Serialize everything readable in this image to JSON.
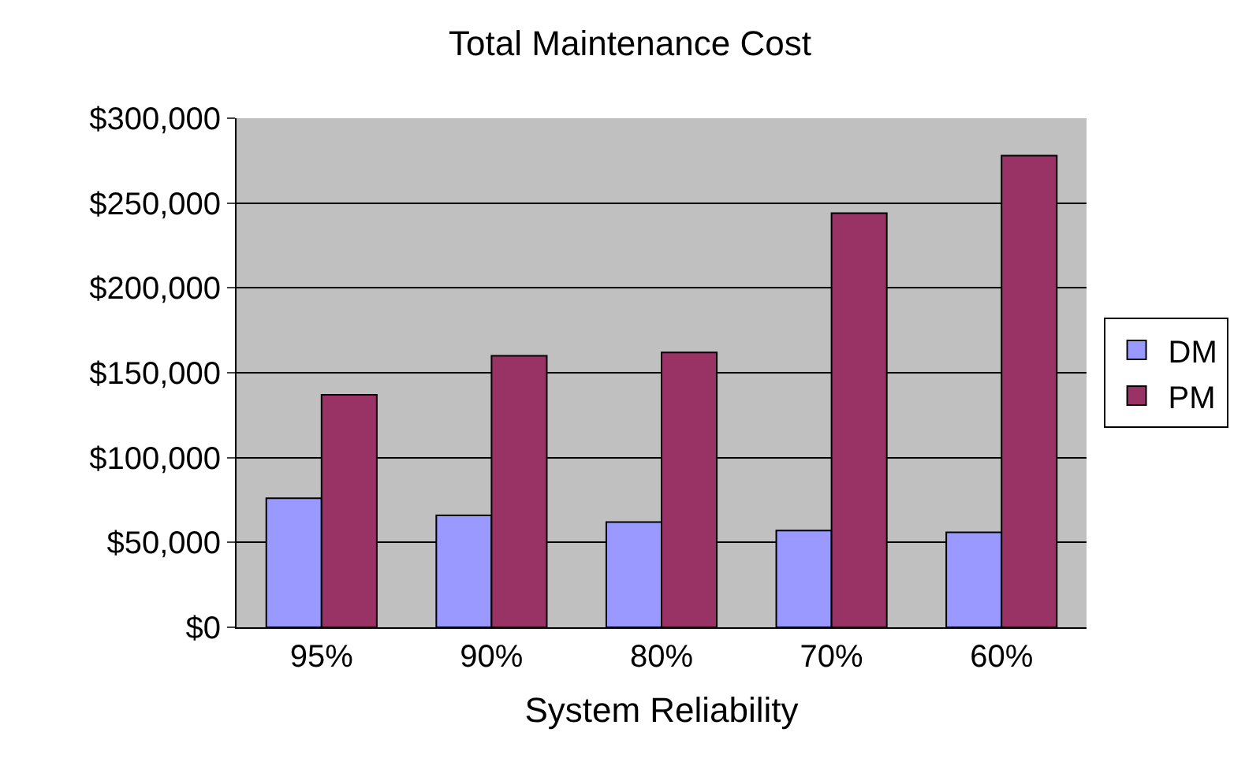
{
  "chart_data": {
    "type": "bar",
    "title": "Total Maintenance Cost",
    "xlabel": "System Reliability",
    "categories": [
      "95%",
      "90%",
      "80%",
      "70%",
      "60%"
    ],
    "series": [
      {
        "name": "DM",
        "color": "#9999ff",
        "values": [
          76000,
          66000,
          62000,
          57000,
          56000
        ]
      },
      {
        "name": "PM",
        "color": "#993366",
        "values": [
          137000,
          160000,
          162000,
          244000,
          278000
        ]
      }
    ],
    "ylim": [
      0,
      300000
    ],
    "yticks": [
      {
        "value": 0,
        "label": "$0"
      },
      {
        "value": 50000,
        "label": "$50,000"
      },
      {
        "value": 100000,
        "label": "$100,000"
      },
      {
        "value": 150000,
        "label": "$150,000"
      },
      {
        "value": 200000,
        "label": "$200,000"
      },
      {
        "value": 250000,
        "label": "$250,000"
      },
      {
        "value": 300000,
        "label": "$300,000"
      }
    ],
    "grid": "y",
    "legend": "right"
  }
}
